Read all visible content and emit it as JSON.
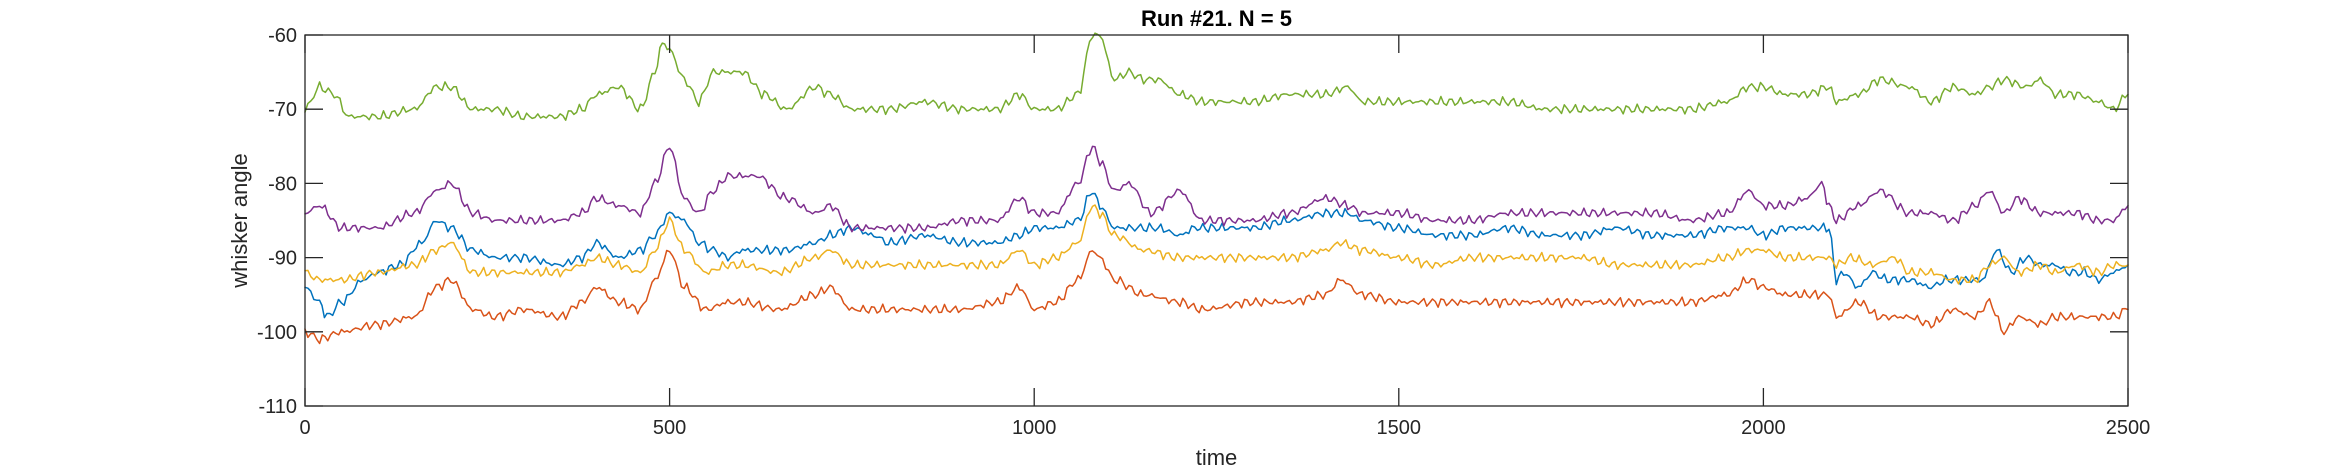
{
  "chart_data": {
    "type": "line",
    "title": "Run #21. N = 5",
    "xlabel": "time",
    "ylabel": "whisker angle",
    "xlim": [
      0,
      2500
    ],
    "ylim": [
      -110,
      -60
    ],
    "xticks": [
      0,
      500,
      1000,
      1500,
      2000,
      2500
    ],
    "yticks": [
      -60,
      -70,
      -80,
      -90,
      -100,
      -110
    ],
    "grid": false,
    "legend": "none",
    "series": [
      {
        "color": "#0072BD",
        "x": [
          0,
          20,
          30,
          50,
          80,
          100,
          130,
          160,
          180,
          200,
          230,
          260,
          300,
          350,
          380,
          400,
          430,
          460,
          480,
          500,
          520,
          540,
          560,
          580,
          600,
          630,
          660,
          700,
          720,
          750,
          780,
          800,
          850,
          900,
          950,
          980,
          1000,
          1030,
          1060,
          1080,
          1090,
          1110,
          1130,
          1150,
          1170,
          1200,
          1220,
          1250,
          1300,
          1350,
          1400,
          1430,
          1450,
          1500,
          1550,
          1600,
          1650,
          1700,
          1750,
          1800,
          1850,
          1900,
          1950,
          1980,
          2000,
          2030,
          2060,
          2090,
          2100,
          2110,
          2130,
          2150,
          2170,
          2200,
          2230,
          2250,
          2270,
          2300,
          2320,
          2340,
          2360,
          2380,
          2400,
          2420,
          2440,
          2460,
          2480,
          2500
        ],
        "values": [
          -94,
          -96,
          -98,
          -96,
          -93,
          -92,
          -91,
          -88,
          -85,
          -86,
          -89,
          -90,
          -90,
          -91,
          -90,
          -88,
          -90,
          -89,
          -87,
          -84,
          -85,
          -88,
          -89,
          -90,
          -89,
          -89,
          -89,
          -88,
          -87,
          -86,
          -87,
          -88,
          -87,
          -88,
          -88,
          -87,
          -86,
          -86,
          -85,
          -81,
          -83,
          -86,
          -86,
          -86,
          -86,
          -87,
          -86,
          -86,
          -86,
          -85,
          -84,
          -84,
          -85,
          -86,
          -87,
          -87,
          -86,
          -87,
          -87,
          -86,
          -87,
          -87,
          -86,
          -86,
          -87,
          -86,
          -86,
          -86,
          -93,
          -92,
          -94,
          -92,
          -93,
          -93,
          -94,
          -93,
          -93,
          -93,
          -89,
          -92,
          -90,
          -91,
          -91,
          -92,
          -92,
          -93,
          -92,
          -91
        ]
      },
      {
        "color": "#D95319",
        "x": [
          0,
          20,
          50,
          100,
          150,
          180,
          200,
          230,
          260,
          300,
          350,
          380,
          400,
          430,
          460,
          480,
          500,
          520,
          550,
          580,
          600,
          650,
          700,
          720,
          750,
          800,
          850,
          900,
          950,
          980,
          1000,
          1030,
          1060,
          1080,
          1090,
          1110,
          1150,
          1200,
          1230,
          1300,
          1350,
          1400,
          1420,
          1450,
          1500,
          1550,
          1600,
          1650,
          1700,
          1750,
          1800,
          1850,
          1900,
          1950,
          1980,
          2000,
          2030,
          2060,
          2090,
          2100,
          2130,
          2160,
          2200,
          2230,
          2260,
          2290,
          2310,
          2330,
          2350,
          2380,
          2400,
          2430,
          2460,
          2480,
          2500
        ],
        "values": [
          -100,
          -101,
          -100,
          -99,
          -98,
          -94,
          -93,
          -97,
          -98,
          -97,
          -98,
          -96,
          -94,
          -96,
          -97,
          -93,
          -89,
          -94,
          -97,
          -96,
          -96,
          -97,
          -95,
          -94,
          -97,
          -97,
          -97,
          -97,
          -96,
          -94,
          -97,
          -96,
          -93,
          -89,
          -90,
          -93,
          -95,
          -96,
          -97,
          -96,
          -96,
          -95,
          -93,
          -95,
          -96,
          -96,
          -96,
          -96,
          -96,
          -96,
          -96,
          -96,
          -96,
          -95,
          -93,
          -94,
          -95,
          -95,
          -95,
          -98,
          -96,
          -98,
          -98,
          -99,
          -97,
          -98,
          -96,
          -100,
          -98,
          -99,
          -98,
          -98,
          -98,
          -98,
          -97
        ]
      },
      {
        "color": "#EDB120",
        "x": [
          0,
          20,
          50,
          100,
          150,
          180,
          200,
          230,
          260,
          300,
          350,
          380,
          400,
          430,
          460,
          480,
          500,
          520,
          550,
          580,
          600,
          650,
          700,
          720,
          750,
          800,
          850,
          900,
          950,
          980,
          1000,
          1030,
          1060,
          1080,
          1090,
          1110,
          1150,
          1200,
          1230,
          1300,
          1350,
          1400,
          1420,
          1450,
          1500,
          1550,
          1600,
          1650,
          1700,
          1750,
          1800,
          1850,
          1900,
          1950,
          1980,
          2000,
          2030,
          2060,
          2090,
          2100,
          2120,
          2150,
          2180,
          2200,
          2230,
          2260,
          2290,
          2310,
          2330,
          2350,
          2380,
          2400,
          2430,
          2460,
          2480,
          2500
        ],
        "values": [
          -92,
          -93,
          -93,
          -92,
          -91,
          -89,
          -88,
          -92,
          -92,
          -92,
          -92,
          -91,
          -90,
          -91,
          -92,
          -89,
          -85,
          -89,
          -92,
          -91,
          -91,
          -92,
          -90,
          -89,
          -91,
          -91,
          -91,
          -91,
          -91,
          -89,
          -91,
          -90,
          -88,
          -83,
          -84,
          -87,
          -89,
          -90,
          -90,
          -90,
          -90,
          -89,
          -88,
          -89,
          -90,
          -91,
          -90,
          -90,
          -90,
          -90,
          -91,
          -91,
          -91,
          -90,
          -89,
          -89,
          -90,
          -90,
          -90,
          -91,
          -90,
          -91,
          -90,
          -92,
          -92,
          -93,
          -93,
          -91,
          -90,
          -92,
          -91,
          -92,
          -91,
          -92,
          -91,
          -91
        ]
      },
      {
        "color": "#7E2F8E",
        "x": [
          0,
          20,
          50,
          100,
          150,
          180,
          200,
          230,
          260,
          300,
          350,
          380,
          400,
          430,
          460,
          480,
          500,
          520,
          540,
          560,
          580,
          620,
          660,
          700,
          720,
          750,
          800,
          850,
          900,
          950,
          980,
          1000,
          1030,
          1060,
          1080,
          1090,
          1110,
          1130,
          1160,
          1200,
          1230,
          1260,
          1300,
          1350,
          1400,
          1430,
          1450,
          1500,
          1550,
          1600,
          1650,
          1700,
          1750,
          1800,
          1850,
          1900,
          1950,
          1980,
          2000,
          2030,
          2060,
          2080,
          2090,
          2100,
          2130,
          2160,
          2200,
          2230,
          2260,
          2290,
          2310,
          2330,
          2350,
          2380,
          2400,
          2430,
          2460,
          2480,
          2500
        ],
        "values": [
          -84,
          -83,
          -86,
          -86,
          -84,
          -81,
          -80,
          -84,
          -85,
          -85,
          -85,
          -84,
          -82,
          -83,
          -84,
          -80,
          -75,
          -82,
          -84,
          -81,
          -79,
          -79,
          -82,
          -84,
          -83,
          -86,
          -86,
          -86,
          -85,
          -85,
          -82,
          -84,
          -84,
          -80,
          -75,
          -77,
          -81,
          -80,
          -84,
          -81,
          -85,
          -85,
          -85,
          -84,
          -82,
          -83,
          -84,
          -84,
          -85,
          -85,
          -84,
          -84,
          -84,
          -84,
          -84,
          -85,
          -84,
          -81,
          -83,
          -83,
          -82,
          -80,
          -83,
          -85,
          -83,
          -81,
          -84,
          -84,
          -85,
          -83,
          -81,
          -84,
          -82,
          -84,
          -84,
          -84,
          -85,
          -85,
          -83
        ]
      },
      {
        "color": "#77AC30",
        "x": [
          0,
          20,
          40,
          60,
          100,
          150,
          180,
          200,
          230,
          260,
          300,
          350,
          380,
          400,
          430,
          460,
          480,
          490,
          500,
          520,
          540,
          560,
          580,
          600,
          630,
          660,
          700,
          720,
          750,
          800,
          850,
          900,
          950,
          980,
          1000,
          1030,
          1060,
          1080,
          1090,
          1110,
          1130,
          1150,
          1170,
          1200,
          1230,
          1260,
          1300,
          1350,
          1400,
          1430,
          1450,
          1500,
          1550,
          1600,
          1650,
          1700,
          1750,
          1800,
          1850,
          1900,
          1950,
          1980,
          2000,
          2030,
          2060,
          2090,
          2100,
          2130,
          2160,
          2200,
          2230,
          2260,
          2290,
          2310,
          2330,
          2360,
          2380,
          2400,
          2430,
          2460,
          2480,
          2500
        ],
        "values": [
          -70,
          -67,
          -68,
          -71,
          -71,
          -70,
          -67,
          -67,
          -70,
          -70,
          -71,
          -71,
          -70,
          -68,
          -67,
          -70,
          -65,
          -61,
          -62,
          -66,
          -69,
          -65,
          -65,
          -65,
          -68,
          -70,
          -67,
          -68,
          -70,
          -70,
          -69,
          -70,
          -70,
          -68,
          -70,
          -70,
          -68,
          -60,
          -60,
          -66,
          -65,
          -66,
          -66,
          -68,
          -69,
          -69,
          -69,
          -68,
          -68,
          -67,
          -69,
          -69,
          -69,
          -69,
          -69,
          -70,
          -70,
          -70,
          -70,
          -70,
          -69,
          -67,
          -67,
          -68,
          -68,
          -67,
          -69,
          -68,
          -66,
          -67,
          -69,
          -67,
          -68,
          -67,
          -66,
          -67,
          -66,
          -68,
          -68,
          -69,
          -70,
          -68
        ]
      }
    ]
  }
}
